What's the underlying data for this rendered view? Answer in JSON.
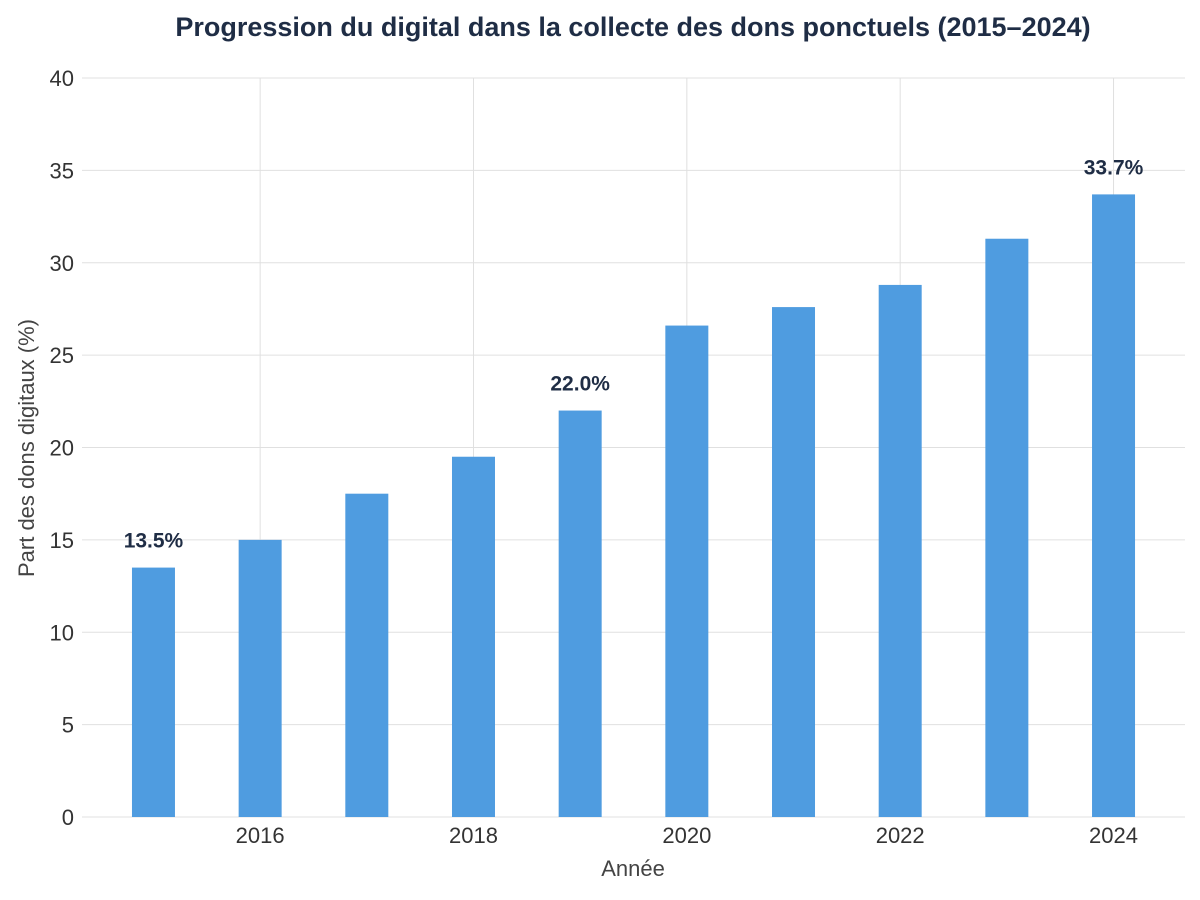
{
  "chart_data": {
    "type": "bar",
    "title": "Progression du digital dans la collecte des dons ponctuels (2015–2024)",
    "xlabel": "Année",
    "ylabel": "Part des dons digitaux (%)",
    "x": [
      2015,
      2016,
      2017,
      2018,
      2019,
      2020,
      2021,
      2022,
      2023,
      2024
    ],
    "values": [
      13.5,
      15.0,
      17.5,
      19.5,
      22.0,
      26.6,
      27.6,
      28.8,
      31.3,
      33.7
    ],
    "data_labels": [
      {
        "x": 2015,
        "text": "13.5%"
      },
      {
        "x": 2019,
        "text": "22.0%"
      },
      {
        "x": 2024,
        "text": "33.7%"
      }
    ],
    "xticks": [
      2016,
      2018,
      2020,
      2022,
      2024
    ],
    "yticks": [
      0,
      5,
      10,
      15,
      20,
      25,
      30,
      35,
      40
    ],
    "xlim": [
      2014.33,
      2024.67
    ],
    "ylim": [
      0,
      40
    ],
    "grid": true,
    "colors": {
      "bar": "#4f9ce0",
      "title": "#1f2d45",
      "label": "#1f2d45",
      "grid": "#e0e0e0",
      "axis_text": "#333333"
    }
  }
}
